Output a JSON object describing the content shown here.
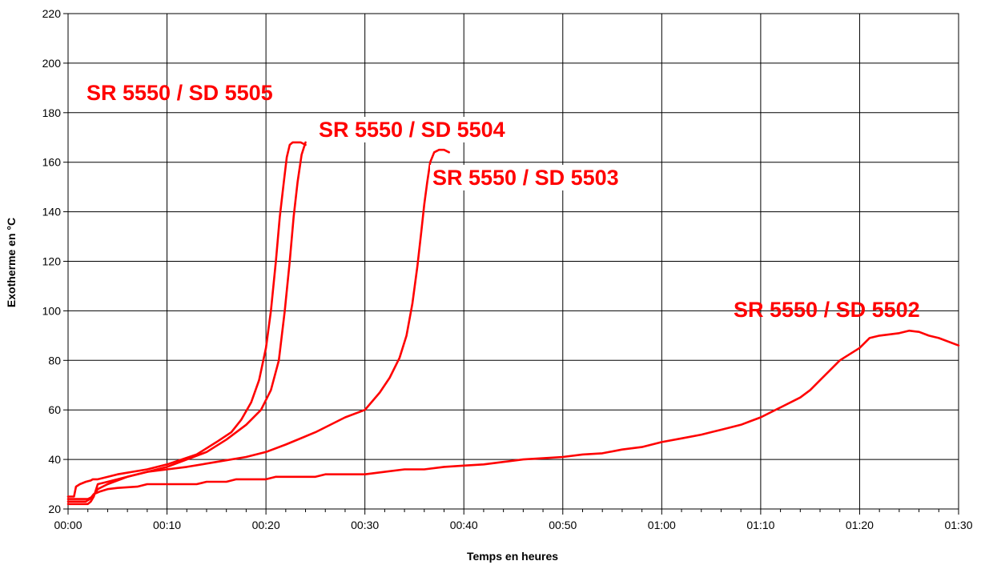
{
  "chart_data": {
    "type": "line",
    "title": "",
    "xlabel": "Temps en heures",
    "ylabel": "Exotherme en °C",
    "xlim": [
      0,
      90
    ],
    "ylim": [
      20,
      220
    ],
    "x_unit": "minutes",
    "x_tick_values": [
      0,
      10,
      20,
      30,
      40,
      50,
      60,
      70,
      80,
      90
    ],
    "x_tick_labels": [
      "00:00",
      "00:10",
      "00:20",
      "00:30",
      "00:40",
      "00:50",
      "01:00",
      "01:10",
      "01:20",
      "01:30"
    ],
    "y_tick_values": [
      20,
      40,
      60,
      80,
      100,
      120,
      140,
      160,
      180,
      200,
      220
    ],
    "y_tick_labels": [
      "20",
      "40",
      "60",
      "80",
      "100",
      "120",
      "140",
      "160",
      "180",
      "200",
      "220"
    ],
    "grid": true,
    "legend": "none",
    "colors": {
      "series": "#ff0000",
      "grid": "#000000",
      "background": "#ffffff"
    },
    "series": [
      {
        "name": "SR 5550 / SD 5505",
        "x": [
          0,
          0.6,
          0.8,
          1.2,
          1.5,
          1.8,
          2.3,
          2.5,
          3,
          5,
          8,
          10,
          13,
          15,
          16.5,
          17.5,
          18.5,
          19.3,
          20,
          20.5,
          21,
          21.4,
          21.8,
          22.1,
          22.4,
          22.7,
          23,
          23.5,
          24
        ],
        "y": [
          25,
          25,
          29,
          30,
          30.5,
          31,
          31.5,
          32,
          32,
          34,
          36,
          38,
          42,
          47,
          51,
          56,
          63,
          72,
          85,
          100,
          120,
          138,
          152,
          162,
          167,
          168,
          168,
          168,
          167
        ]
      },
      {
        "name": "SR 5550 / SD 5504",
        "x": [
          0,
          1,
          2,
          2.5,
          3,
          4,
          6,
          8,
          10,
          12,
          14,
          16,
          18,
          19.5,
          20.5,
          21.3,
          21.9,
          22.4,
          22.8,
          23.2,
          23.6,
          24
        ],
        "y": [
          24,
          24,
          24,
          25,
          28,
          30,
          33,
          35,
          37,
          40,
          43,
          48,
          54,
          60,
          68,
          80,
          100,
          120,
          138,
          152,
          163,
          168
        ]
      },
      {
        "name": "SR 5550 / SD 5503",
        "x": [
          0,
          1,
          1.5,
          2,
          2.3,
          2.6,
          3,
          4,
          6,
          8,
          10,
          12,
          15,
          18,
          20,
          22,
          25,
          28,
          30,
          31.5,
          32.5,
          33.5,
          34.2,
          34.8,
          35.3,
          35.7,
          36,
          36.3,
          36.6,
          37,
          37.5,
          38,
          38.5
        ],
        "y": [
          22,
          22,
          22,
          22,
          23,
          25,
          30,
          31,
          33,
          35,
          36,
          37,
          39,
          41,
          43,
          46,
          51,
          57,
          60,
          67,
          73,
          81,
          90,
          103,
          118,
          132,
          143,
          152,
          160,
          164,
          165,
          165,
          164
        ]
      },
      {
        "name": "SR 5550 / SD 5502",
        "x": [
          0,
          1,
          1.8,
          2.2,
          2.6,
          3.2,
          4,
          5,
          7,
          8,
          10,
          13,
          14,
          15,
          16,
          17,
          20,
          21,
          25,
          26,
          30,
          32,
          34,
          36,
          38,
          40,
          42,
          44,
          46,
          48,
          50,
          52,
          54,
          56,
          58,
          60,
          62,
          64,
          66,
          68,
          69,
          70,
          72,
          74,
          75,
          76,
          77,
          78,
          80,
          81,
          82,
          84,
          85,
          86,
          87,
          88,
          90
        ],
        "y": [
          23,
          23,
          23,
          24,
          26,
          27,
          28,
          28.5,
          29,
          30,
          30,
          30,
          31,
          31,
          31,
          32,
          32,
          33,
          33,
          34,
          34,
          35,
          36,
          36,
          37,
          37.5,
          38,
          39,
          40,
          40.5,
          41,
          42,
          42.5,
          44,
          45,
          47,
          48.5,
          50,
          52,
          54,
          55.5,
          57,
          61,
          65,
          68,
          72,
          76,
          80,
          85,
          89,
          90,
          91,
          92,
          91.5,
          90,
          89,
          86
        ]
      }
    ],
    "annotations": [
      {
        "text": "SR 5550 / SD 5505",
        "series": 0
      },
      {
        "text": "SR 5550 / SD 5504",
        "series": 1
      },
      {
        "text": "SR 5550 / SD 5503",
        "series": 2
      },
      {
        "text": "SR 5550 / SD 5502",
        "series": 3
      }
    ]
  }
}
